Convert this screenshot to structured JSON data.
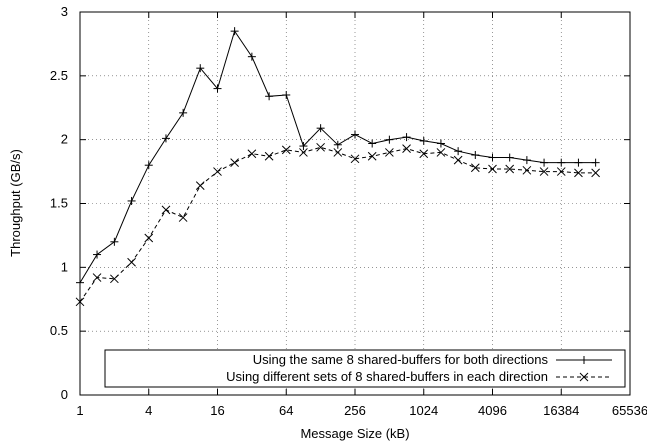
{
  "chart_data": {
    "type": "line",
    "xlabel": "Message Size (kB)",
    "ylabel": "Throughput (GB/s)",
    "x_scale": "log2",
    "xlim": [
      1,
      65536
    ],
    "ylim": [
      0,
      3
    ],
    "x_ticks": [
      1,
      4,
      16,
      64,
      256,
      1024,
      4096,
      16384,
      65536
    ],
    "y_ticks": [
      0,
      0.5,
      1,
      1.5,
      2,
      2.5,
      3
    ],
    "grid": true,
    "legend_position": "bottom-right",
    "x": [
      1,
      1.41,
      2,
      2.83,
      4,
      5.66,
      8,
      11.3,
      16,
      22.6,
      32,
      45.3,
      64,
      90.5,
      128,
      181,
      256,
      362,
      512,
      724,
      1024,
      1448,
      2048,
      2896,
      4096,
      5793,
      8192,
      11585,
      16384,
      23170,
      32768
    ],
    "series": [
      {
        "name": "Using the same 8 shared-buffers for both directions",
        "marker": "+",
        "line_style": "solid",
        "values": [
          0.88,
          1.1,
          1.2,
          1.52,
          1.8,
          2.01,
          2.21,
          2.56,
          2.4,
          2.85,
          2.65,
          2.34,
          2.35,
          1.95,
          2.09,
          1.96,
          2.04,
          1.97,
          2.0,
          2.02,
          1.99,
          1.97,
          1.91,
          1.88,
          1.86,
          1.86,
          1.84,
          1.82,
          1.82,
          1.82,
          1.82
        ]
      },
      {
        "name": "Using different sets of 8 shared-buffers in each direction",
        "marker": "x",
        "line_style": "dashed",
        "values": [
          0.73,
          0.92,
          0.91,
          1.04,
          1.23,
          1.45,
          1.39,
          1.64,
          1.75,
          1.82,
          1.89,
          1.87,
          1.92,
          1.9,
          1.94,
          1.9,
          1.85,
          1.87,
          1.9,
          1.93,
          1.89,
          1.9,
          1.84,
          1.78,
          1.77,
          1.77,
          1.76,
          1.75,
          1.75,
          1.74,
          1.74
        ]
      }
    ]
  }
}
